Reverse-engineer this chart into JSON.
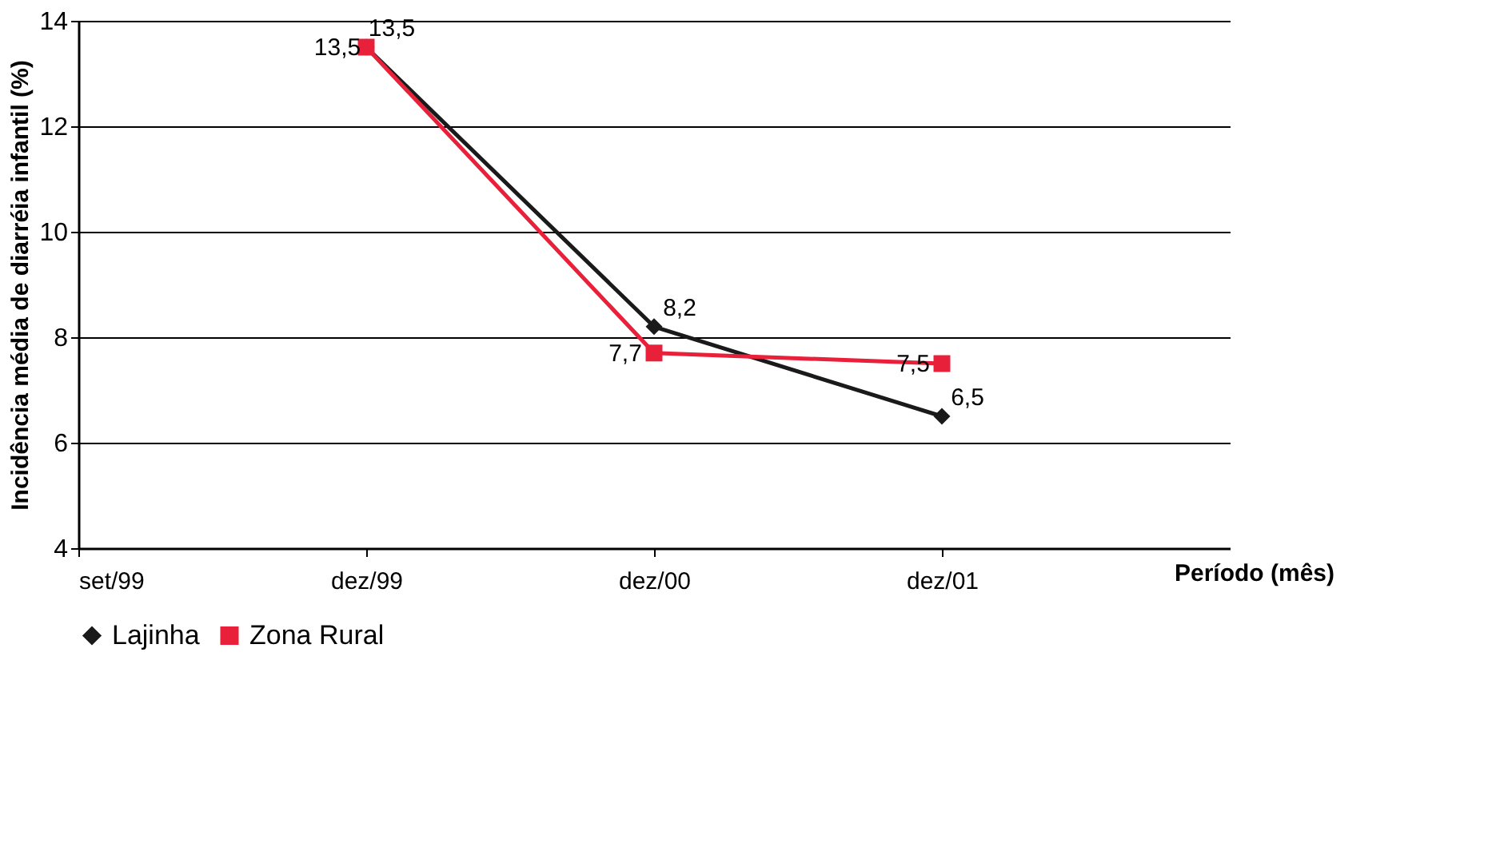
{
  "chart_data": {
    "type": "line",
    "xlabel": "Período (mês)",
    "ylabel": "Incidência média de diarréia infantil (%)",
    "categories": [
      "set/99",
      "dez/99",
      "dez/00",
      "dez/01"
    ],
    "series": [
      {
        "name": "Lajinha",
        "color": "#1a1a1a",
        "marker": "diamond",
        "values": [
          null,
          13.5,
          8.2,
          6.5
        ],
        "value_labels": [
          null,
          "13,5",
          "8,2",
          "6,5"
        ]
      },
      {
        "name": "Zona Rural",
        "color": "#e8203a",
        "marker": "square",
        "values": [
          null,
          13.5,
          7.7,
          7.5
        ],
        "value_labels": [
          null,
          "13,5",
          "7,7",
          "7,5"
        ]
      }
    ],
    "ylim": [
      4,
      14
    ],
    "yticks": [
      4,
      6,
      8,
      10,
      12,
      14
    ],
    "grid": "y",
    "legend": "bottom",
    "line_style": "solid"
  }
}
